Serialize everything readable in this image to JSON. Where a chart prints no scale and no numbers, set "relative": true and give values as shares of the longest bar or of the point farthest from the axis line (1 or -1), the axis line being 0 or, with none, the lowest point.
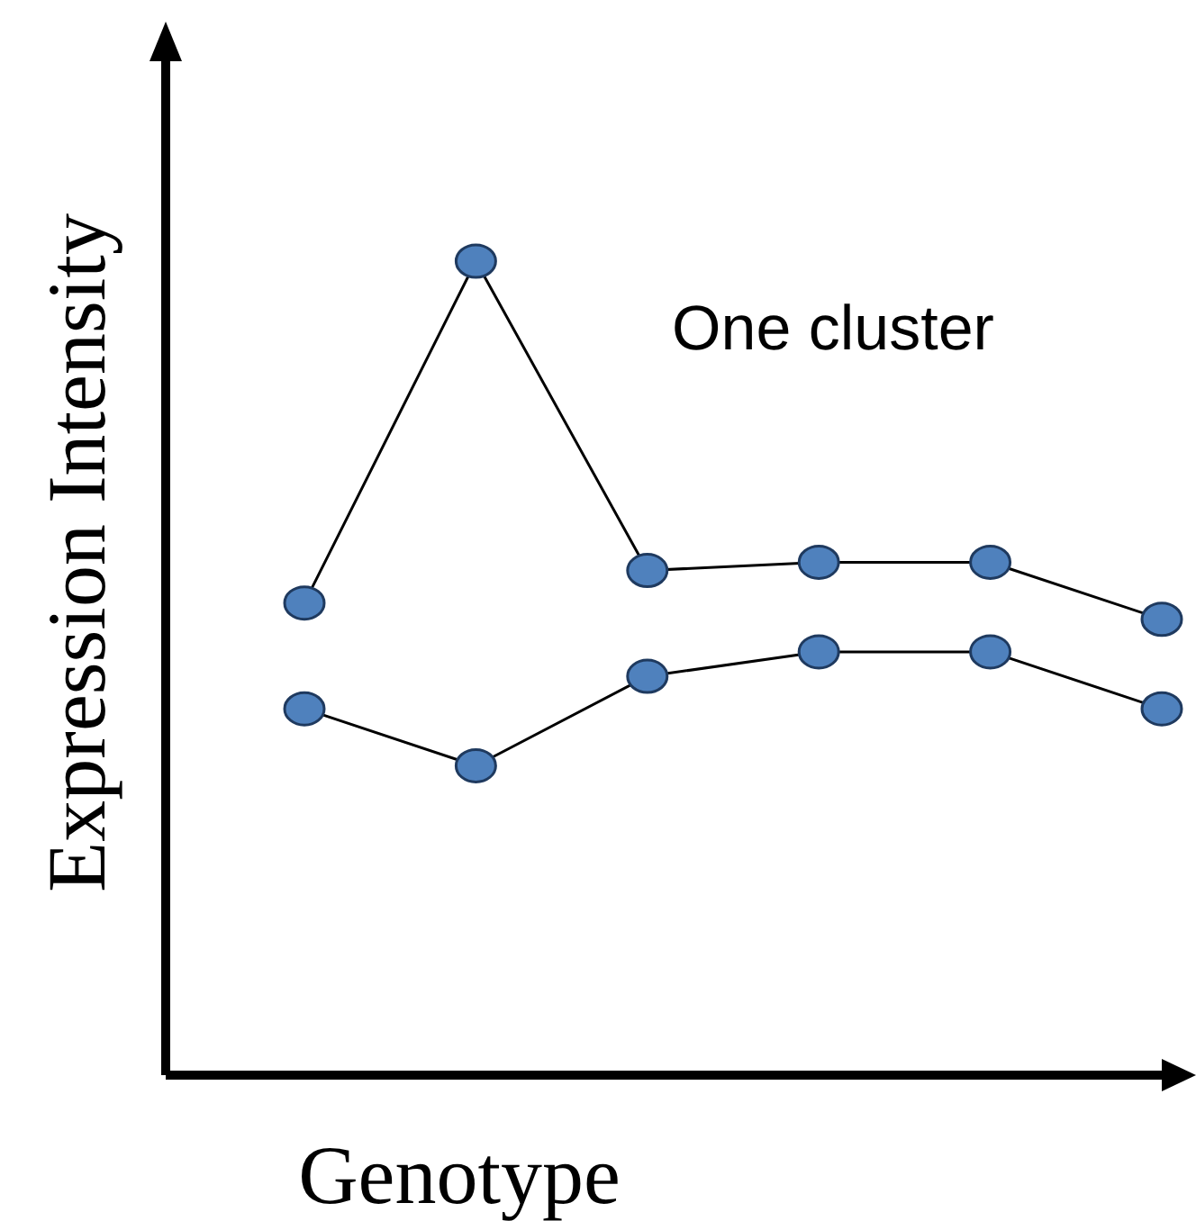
{
  "chart_data": {
    "type": "line",
    "xlabel": "Genotype",
    "ylabel": "Expression Intensity",
    "annotations": [
      "One cluster"
    ],
    "relative": true,
    "marker": "circle",
    "categories": [
      null,
      null,
      null,
      null,
      null,
      null
    ],
    "series": [
      {
        "color": "#000000",
        "values": [
          0.58,
          1,
          0.62,
          0.63,
          0.63,
          0.56
        ]
      },
      {
        "color": "#000000",
        "values": [
          0.45,
          0.38,
          0.49,
          0.52,
          0.52,
          0.45
        ]
      }
    ]
  }
}
